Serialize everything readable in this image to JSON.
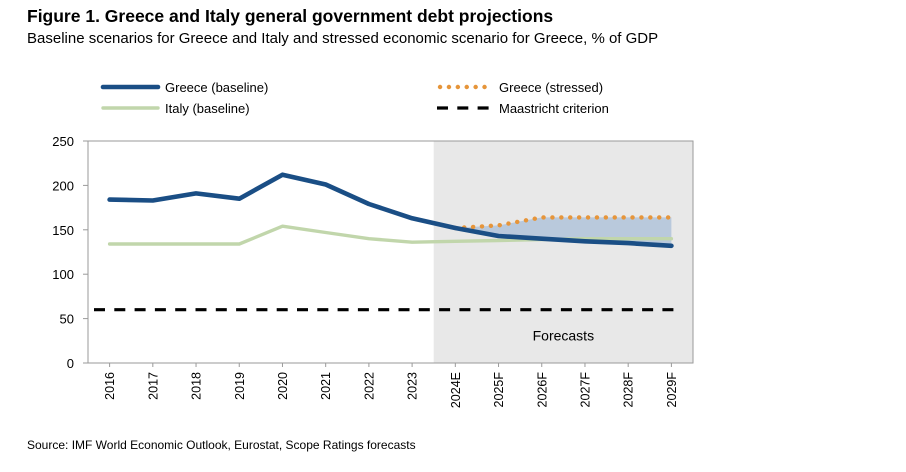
{
  "figure": {
    "title": "Figure 1. Greece and Italy general government debt projections",
    "subtitle": "Baseline scenarios for Greece and Italy and stressed economic scenario for Greece, % of GDP",
    "source": "Source: IMF World Economic Outlook, Eurostat, Scope Ratings forecasts"
  },
  "chart_data": {
    "type": "line",
    "categories": [
      "2016",
      "2017",
      "2018",
      "2019",
      "2020",
      "2021",
      "2022",
      "2023",
      "2024E",
      "2025F",
      "2026F",
      "2027F",
      "2028F",
      "2029F"
    ],
    "ylim": [
      0,
      250
    ],
    "yticks": [
      0,
      50,
      100,
      150,
      200,
      250
    ],
    "grid": false,
    "xlabel": "",
    "ylabel": "",
    "legend_position": "top",
    "series": [
      {
        "key": "greece_baseline",
        "name": "Greece (baseline)",
        "color": "#1a4e85",
        "style": "solid-thick",
        "values": [
          184,
          183,
          191,
          185,
          212,
          201,
          179,
          163,
          152,
          143,
          140,
          137,
          135,
          132
        ]
      },
      {
        "key": "greece_stressed",
        "name": "Greece (stressed)",
        "color": "#e6953a",
        "style": "dotted",
        "values": [
          null,
          null,
          null,
          null,
          null,
          null,
          null,
          null,
          152,
          155,
          164,
          164,
          164,
          164
        ]
      },
      {
        "key": "italy_baseline",
        "name": "Italy (baseline)",
        "color": "#c1d6ab",
        "style": "solid",
        "values": [
          134,
          134,
          134,
          134,
          154,
          147,
          140,
          136,
          137,
          138,
          139,
          140,
          140,
          140
        ]
      },
      {
        "key": "maastricht",
        "name": "Maastricht criterion",
        "color": "#000000",
        "style": "dashed",
        "values": [
          60,
          60,
          60,
          60,
          60,
          60,
          60,
          60,
          60,
          60,
          60,
          60,
          60,
          60
        ]
      }
    ],
    "band": {
      "name": "Greece baseline-to-stressed range",
      "color": "#a9bfd8",
      "lower": [
        null,
        null,
        null,
        null,
        null,
        null,
        null,
        163,
        152,
        143,
        140,
        137,
        135,
        132
      ],
      "upper": [
        null,
        null,
        null,
        null,
        null,
        null,
        null,
        163,
        152,
        155,
        164,
        164,
        164,
        164
      ]
    },
    "forecast_region": {
      "label": "Forecasts",
      "start": "2024E",
      "end": "2029F",
      "color": "#e8e8e8"
    }
  }
}
